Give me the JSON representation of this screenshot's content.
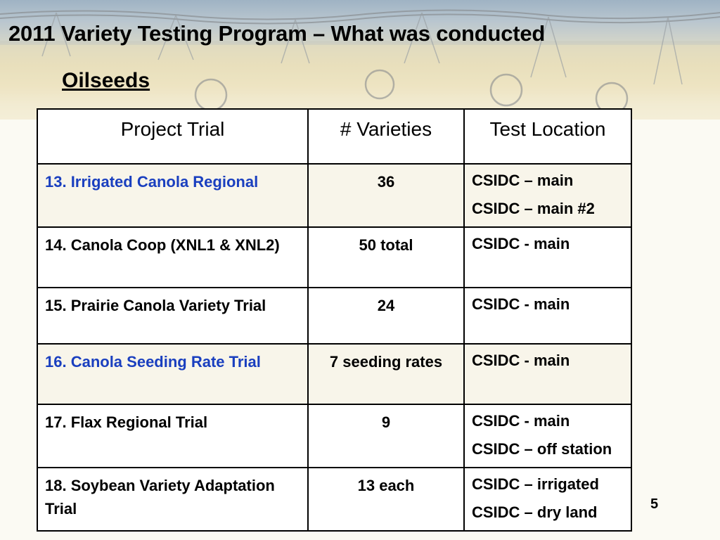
{
  "slide": {
    "title": "2011 Variety Testing Program – What was conducted",
    "subtitle": "Oilseeds",
    "page_number": "5"
  },
  "table": {
    "headers": [
      "Project Trial",
      "# Varieties",
      "Test Location"
    ],
    "rows": [
      {
        "trial": "13. Irrigated Canola Regional",
        "varieties": "36",
        "locations": [
          "CSIDC – main",
          "CSIDC – main #2"
        ],
        "highlight": true
      },
      {
        "trial": "14. Canola Coop (XNL1 & XNL2)",
        "varieties": "50 total",
        "locations": [
          "CSIDC - main"
        ],
        "highlight": false
      },
      {
        "trial": "15.  Prairie Canola Variety Trial",
        "varieties": "24",
        "locations": [
          "CSIDC - main"
        ],
        "highlight": false
      },
      {
        "trial": "16.  Canola Seeding Rate Trial",
        "varieties": "7 seeding rates",
        "locations": [
          "CSIDC - main"
        ],
        "highlight": true
      },
      {
        "trial": "17. Flax Regional Trial",
        "varieties": "9",
        "locations": [
          "CSIDC - main",
          "CSIDC – off station"
        ],
        "highlight": false
      },
      {
        "trial": "18. Soybean Variety Adaptation Trial",
        "varieties": "13 each",
        "locations": [
          "CSIDC – irrigated",
          "CSIDC – dry land"
        ],
        "highlight": false
      }
    ]
  },
  "colors": {
    "highlight_text": "#1a3fbf",
    "highlight_bg": "#f8f5ea"
  }
}
